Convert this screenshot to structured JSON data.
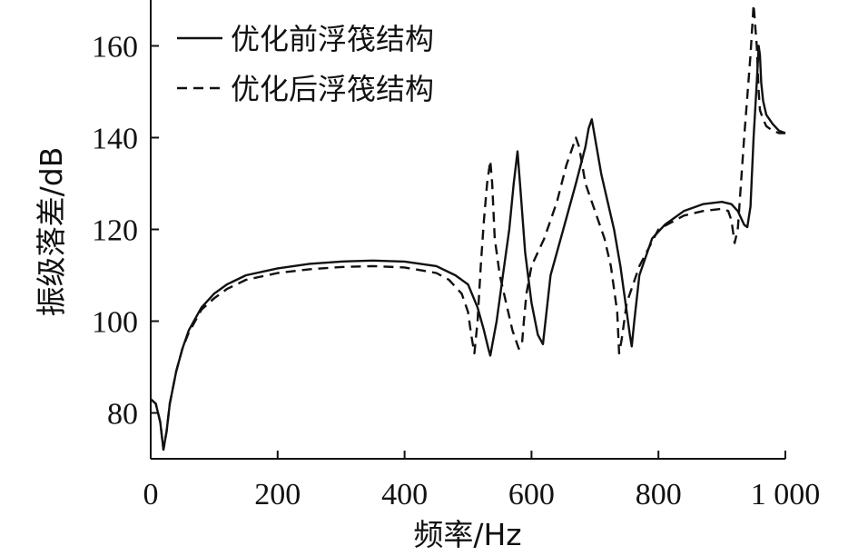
{
  "chart_data": {
    "type": "line",
    "xlabel": "频率/Hz",
    "ylabel": "振级落差/dB",
    "xlim": [
      0,
      1000
    ],
    "ylim": [
      70,
      170
    ],
    "x_ticks": [
      0,
      200,
      400,
      600,
      800,
      1000
    ],
    "x_tick_labels": [
      "0",
      "200",
      "400",
      "600",
      "800",
      "1 000"
    ],
    "y_ticks": [
      80,
      100,
      120,
      140,
      160
    ],
    "y_tick_labels": [
      "80",
      "100",
      "120",
      "140",
      "160"
    ],
    "grid": false,
    "legend_position": "top-left",
    "series": [
      {
        "name": "优化前浮筏结构",
        "style": "solid",
        "color": "#111111",
        "x": [
          0,
          8,
          15,
          20,
          25,
          30,
          40,
          50,
          60,
          80,
          100,
          120,
          150,
          200,
          250,
          300,
          350,
          400,
          450,
          480,
          500,
          515,
          525,
          532,
          535,
          545,
          555,
          565,
          572,
          578,
          583,
          590,
          600,
          610,
          618,
          622,
          630,
          650,
          670,
          685,
          690,
          695,
          700,
          710,
          720,
          730,
          740,
          750,
          755,
          758,
          762,
          770,
          790,
          810,
          840,
          870,
          900,
          915,
          925,
          935,
          940,
          945,
          950,
          955,
          958,
          960,
          962,
          965,
          970,
          980,
          990,
          1000
        ],
        "y": [
          83,
          82,
          78,
          72,
          76,
          82,
          89,
          94,
          98,
          103,
          106,
          108,
          110,
          111.5,
          112.5,
          113,
          113.2,
          113,
          112,
          110,
          108,
          103,
          98,
          94,
          92.5,
          100,
          110,
          120,
          130,
          137,
          128,
          115,
          104,
          97,
          95,
          100,
          110,
          120,
          130,
          138,
          142,
          144,
          140,
          132,
          126,
          120,
          112,
          102,
          97,
          94.5,
          100,
          110,
          118,
          121,
          124,
          125.5,
          126,
          125.5,
          124,
          121,
          120.5,
          125,
          140,
          152,
          160,
          158,
          152,
          148,
          145,
          143,
          141.5,
          141
        ]
      },
      {
        "name": "优化后浮筏结构",
        "style": "dashed",
        "color": "#111111",
        "x": [
          0,
          8,
          15,
          20,
          25,
          30,
          40,
          50,
          60,
          80,
          100,
          120,
          150,
          200,
          250,
          300,
          350,
          400,
          450,
          470,
          490,
          500,
          505,
          510,
          515,
          520,
          525,
          530,
          535,
          538,
          542,
          550,
          560,
          570,
          580,
          585,
          588,
          592,
          600,
          620,
          640,
          655,
          665,
          670,
          675,
          685,
          700,
          715,
          725,
          735,
          738,
          742,
          750,
          770,
          800,
          840,
          870,
          900,
          910,
          915,
          920,
          925,
          935,
          945,
          950,
          955,
          958,
          960,
          965,
          970,
          980,
          990,
          1000
        ],
        "y": [
          83,
          82,
          78,
          72,
          76,
          82,
          89,
          94,
          97.5,
          102.5,
          105,
          107,
          109,
          110.5,
          111.3,
          111.8,
          112,
          111.7,
          110.5,
          109,
          106,
          102,
          97,
          93,
          100,
          112,
          122,
          130,
          135,
          130,
          118,
          110,
          104,
          98,
          94,
          95,
          100,
          106,
          112,
          118,
          126,
          134,
          138,
          140,
          138,
          130,
          124,
          118,
          112,
          102,
          93,
          96,
          104,
          112,
          120,
          123,
          124,
          124.5,
          124,
          122,
          117,
          120,
          140,
          158,
          169,
          160,
          150,
          146,
          144,
          142.5,
          141.5,
          141,
          141
        ]
      }
    ]
  }
}
